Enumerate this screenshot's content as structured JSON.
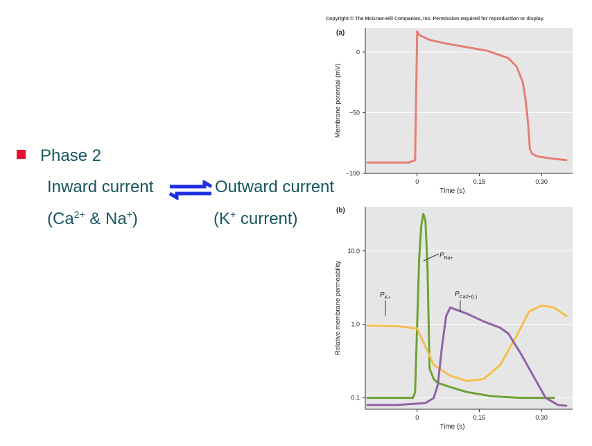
{
  "slide": {
    "bullet_label": "Phase 2",
    "inward": "Inward current",
    "outward": "Outward current",
    "inward_ions": {
      "open": "(Ca",
      "sup1": "2+",
      "mid": " & Na",
      "sup2": "+",
      "close": ")"
    },
    "outward_ions": {
      "open": "(K",
      "sup": "+",
      "close": " current)"
    },
    "bullet_color": "#e8102e",
    "arrow_color": "#1f2fe0"
  },
  "copyright": "Copyright © The McGraw-Hill Companies, Inc. Permission required for reproduction or display.",
  "chart_data": [
    {
      "panel_label": "(a)",
      "type": "line",
      "xlabel": "Time (s)",
      "ylabel": "Membrane potential (mV)",
      "xlim": [
        -0.125,
        0.375
      ],
      "ylim": [
        -100,
        20
      ],
      "x_ticks": [
        0,
        0.15,
        0.3
      ],
      "x_tick_labels": [
        "0",
        "0.15",
        "0.30"
      ],
      "y_ticks": [
        0,
        -50,
        -100
      ],
      "y_tick_labels": [
        "0",
        "−50",
        "−100"
      ],
      "background": "#e6e6e6",
      "series": [
        {
          "color": "#e57f74",
          "x": [
            -0.12,
            -0.02,
            -0.005,
            0,
            0.005,
            0.03,
            0.07,
            0.12,
            0.17,
            0.22,
            0.24,
            0.255,
            0.262,
            0.268,
            0.272,
            0.278,
            0.29,
            0.33,
            0.36
          ],
          "y": [
            -91,
            -91,
            -89,
            17,
            14,
            10,
            7,
            4,
            1,
            -5,
            -12,
            -25,
            -40,
            -60,
            -80,
            -84,
            -86,
            -88,
            -89
          ]
        }
      ]
    },
    {
      "panel_label": "(b)",
      "type": "line",
      "xlabel": "Time (s)",
      "ylabel": "Relative membrane permeability",
      "y_scale": "log",
      "xlim": [
        -0.125,
        0.375
      ],
      "ylim": [
        0.07,
        40
      ],
      "x_ticks": [
        0,
        0.15,
        0.3
      ],
      "x_tick_labels": [
        "0",
        "0.15",
        "0.30"
      ],
      "y_ticks": [
        0.1,
        1.0,
        10.0
      ],
      "y_tick_labels": [
        "0.1",
        "1.0",
        "10.0"
      ],
      "background": "#e6e6e6",
      "series": [
        {
          "name_main": "P",
          "name_sub": "Na+",
          "color": "#6fa136",
          "x": [
            -0.12,
            -0.01,
            -0.005,
            0,
            0.005,
            0.01,
            0.015,
            0.02,
            0.025,
            0.03,
            0.04,
            0.05,
            0.08,
            0.12,
            0.18,
            0.25,
            0.33
          ],
          "y": [
            0.1,
            0.1,
            0.12,
            1.0,
            8.0,
            22.0,
            32.0,
            26.0,
            6.0,
            0.25,
            0.18,
            0.16,
            0.14,
            0.12,
            0.105,
            0.1,
            0.1
          ]
        },
        {
          "name_main": "P",
          "name_sub": "K+",
          "color": "#f5be4e",
          "x": [
            -0.12,
            -0.05,
            0,
            0.02,
            0.04,
            0.08,
            0.12,
            0.16,
            0.2,
            0.24,
            0.27,
            0.3,
            0.33,
            0.36
          ],
          "y": [
            0.97,
            0.95,
            0.88,
            0.5,
            0.28,
            0.2,
            0.17,
            0.18,
            0.28,
            0.7,
            1.5,
            1.8,
            1.7,
            1.3
          ]
        },
        {
          "name_main": "P",
          "name_sub": "Ca2+(L)",
          "color": "#8f63a6",
          "x": [
            -0.12,
            -0.05,
            0.02,
            0.04,
            0.05,
            0.06,
            0.07,
            0.08,
            0.12,
            0.16,
            0.2,
            0.22,
            0.25,
            0.28,
            0.31,
            0.34,
            0.36
          ],
          "y": [
            0.08,
            0.08,
            0.085,
            0.1,
            0.15,
            0.5,
            1.3,
            1.7,
            1.4,
            1.1,
            0.9,
            0.75,
            0.4,
            0.2,
            0.1,
            0.08,
            0.078
          ]
        }
      ]
    }
  ]
}
